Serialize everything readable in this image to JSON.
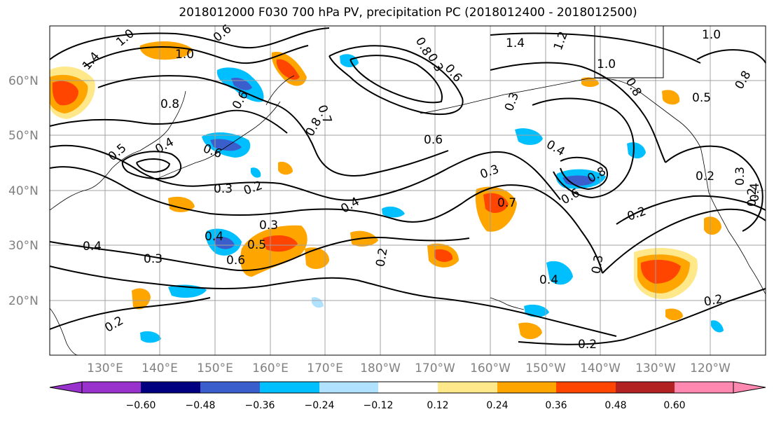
{
  "title": "2018012000 F030 700 hPa PV, precipitation PC (2018012400 - 2018012500)",
  "latitude_labels": [
    "60°N",
    "50°N",
    "40°N",
    "30°N",
    "20°N"
  ],
  "longitude_labels": [
    "130°E",
    "140°E",
    "150°E",
    "160°E",
    "170°E",
    "180°W",
    "170°W",
    "160°W",
    "150°W",
    "140°W",
    "130°W",
    "120°W"
  ],
  "colorbar": {
    "tick_labels": [
      "−0.60",
      "−0.48",
      "−0.36",
      "−0.24",
      "−0.12",
      "0.12",
      "0.24",
      "0.36",
      "0.48",
      "0.60"
    ],
    "colors": [
      "#9932cc",
      "#000080",
      "#3a5fcd",
      "#00bfff",
      "#b0e2ff",
      "#ffffff",
      "#ffe88a",
      "#ffa500",
      "#ff4500",
      "#b22222",
      "#ff88b0"
    ]
  },
  "contour_labels": [
    "1.4",
    "1.0",
    "0.6",
    "1.0",
    "1.4",
    "1.2",
    "1.0",
    "1.0",
    "0.8",
    "0.8",
    "0.5",
    "0.8",
    "0.7",
    "0.8",
    "0.6",
    "0.6",
    "0.4",
    "0.5",
    "0.6",
    "0.3",
    "0.2",
    "0.4",
    "0.3",
    "0.2",
    "0.3",
    "0.7",
    "0.4",
    "0.8",
    "0.4",
    "0.5",
    "0.4",
    "0.3",
    "0.6",
    "0.3",
    "0.2",
    "0.4",
    "0.3",
    "0.2",
    "0.2",
    "0.2",
    "0.2",
    "0.4",
    "0.2",
    "0.3",
    "0.6",
    "0.8",
    "0.6",
    "0.3"
  ],
  "color_hex": {
    "neg_light": "#b0e2ff",
    "neg_mid": "#00bfff",
    "neg_strong": "#3a5fcd",
    "pos_light": "#ffe88a",
    "pos_mid": "#ffa500",
    "pos_strong": "#ff4500"
  }
}
